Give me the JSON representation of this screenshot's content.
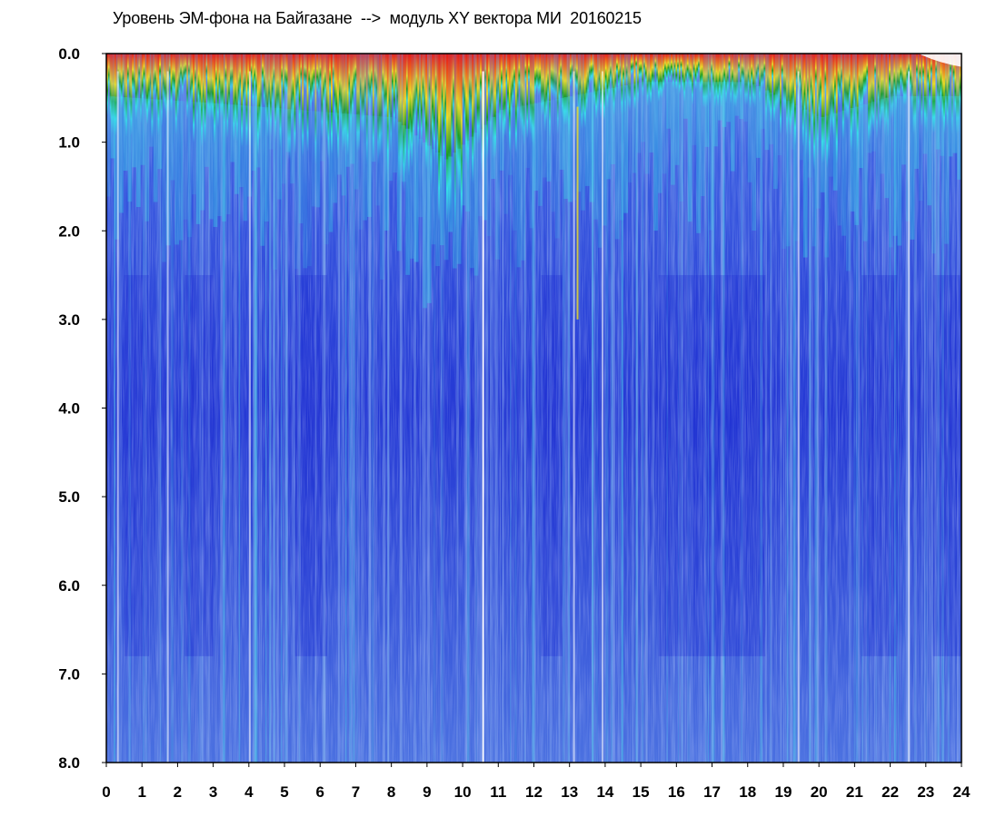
{
  "chart_data": {
    "type": "heatmap",
    "title": "Уровень ЭМ-фона на Байгазане  -->  модуль XY вектора МИ  20160215",
    "xlabel": "",
    "ylabel": "",
    "xlim": [
      0,
      24
    ],
    "ylim": [
      0,
      8
    ],
    "y_inverted": true,
    "x_ticks": [
      "0",
      "1",
      "2",
      "3",
      "4",
      "5",
      "6",
      "7",
      "8",
      "9",
      "10",
      "11",
      "12",
      "13",
      "14",
      "15",
      "16",
      "17",
      "18",
      "19",
      "20",
      "21",
      "22",
      "23",
      "24"
    ],
    "y_ticks": [
      "0.0",
      "1.0",
      "2.0",
      "3.0",
      "4.0",
      "5.0",
      "6.0",
      "7.0",
      "8.0"
    ],
    "colorscale": [
      "#1a2bd8",
      "#4a6ae8",
      "#8a9ef0",
      "#37e0e8",
      "#1aa01a",
      "#f0e020",
      "#f07018",
      "#e81818"
    ],
    "bright_streaks_hours": [
      0.3,
      1.7,
      4.0,
      10.55,
      13.1,
      13.9,
      19.4,
      22.5
    ],
    "high_level_band": [
      {
        "hour": 0,
        "depth": 0.6
      },
      {
        "hour": 3,
        "depth": 0.7
      },
      {
        "hour": 8,
        "depth": 0.9
      },
      {
        "hour": 9.5,
        "depth": 1.5
      },
      {
        "hour": 11,
        "depth": 0.8
      },
      {
        "hour": 13,
        "depth": 0.6
      },
      {
        "hour": 15,
        "depth": 0.4
      },
      {
        "hour": 18,
        "depth": 0.4
      },
      {
        "hour": 20,
        "depth": 0.9
      },
      {
        "hour": 22,
        "depth": 0.6
      },
      {
        "hour": 23.5,
        "depth": 0.6
      }
    ]
  }
}
